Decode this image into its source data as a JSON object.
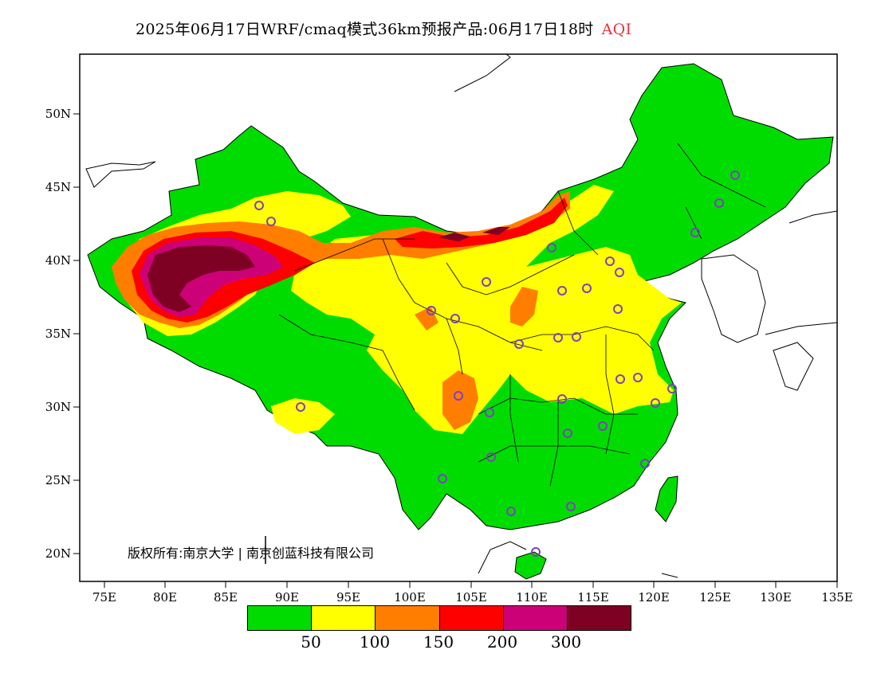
{
  "header": {
    "title": "2025年06月17日WRF/cmaq模式36km预报产品:06月17日18时",
    "variable": "AQI"
  },
  "axes": {
    "lon_ticks": [
      "75E",
      "80E",
      "85E",
      "90E",
      "95E",
      "100E",
      "105E",
      "110E",
      "115E",
      "120E",
      "125E",
      "130E",
      "135E"
    ],
    "lat_ticks": [
      "50N",
      "45N",
      "40N",
      "35N",
      "30N",
      "25N",
      "20N"
    ]
  },
  "colorbar": {
    "colors": [
      "#00dc00",
      "#ffff00",
      "#ff7e00",
      "#ff0000",
      "#cc0077",
      "#7e0023"
    ],
    "labels": [
      "50",
      "100",
      "150",
      "200",
      "300"
    ]
  },
  "copyright": "版权所有:南京大学 | 南京创蓝科技有限公司",
  "map_layers": {
    "background": "#ffffff",
    "level_colors": {
      "good": "#00dc00",
      "moderate": "#ffff00",
      "sensitive": "#ff7e00",
      "unhealthy": "#ff0000",
      "very_unhealthy": "#cc0077",
      "hazardous": "#7e0023"
    },
    "station_marker_color": "#8040c0"
  }
}
